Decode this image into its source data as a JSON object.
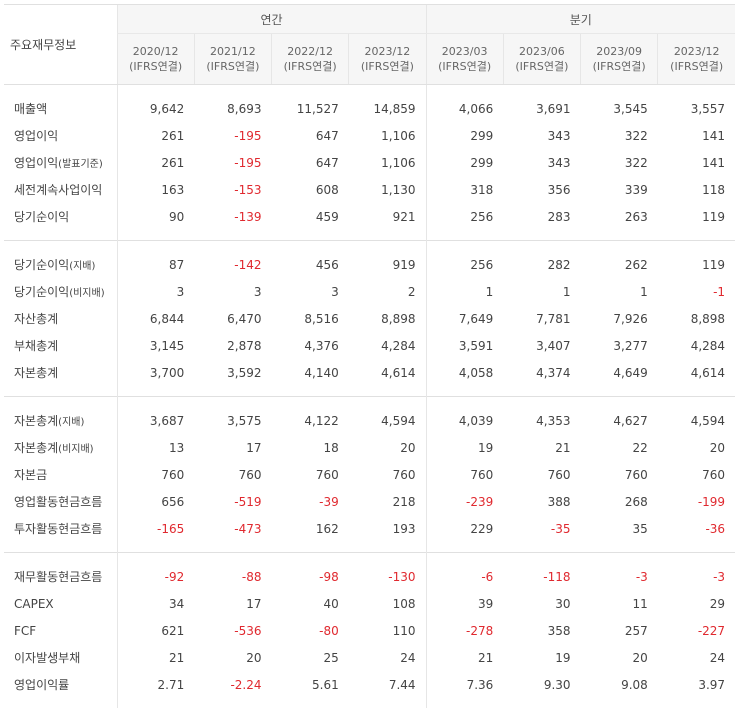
{
  "header": {
    "label": "주요재무정보",
    "annual": "연간",
    "quarterly": "분기",
    "periods": [
      {
        "date": "2020/12",
        "basis": "(IFRS연결)"
      },
      {
        "date": "2021/12",
        "basis": "(IFRS연결)"
      },
      {
        "date": "2022/12",
        "basis": "(IFRS연결)"
      },
      {
        "date": "2023/12",
        "basis": "(IFRS연결)"
      },
      {
        "date": "2023/03",
        "basis": "(IFRS연결)"
      },
      {
        "date": "2023/06",
        "basis": "(IFRS연결)"
      },
      {
        "date": "2023/09",
        "basis": "(IFRS연결)"
      },
      {
        "date": "2023/12",
        "basis": "(IFRS연결)"
      }
    ]
  },
  "groups": [
    [
      {
        "label": "매출액",
        "sub": "",
        "values": [
          "9,642",
          "8,693",
          "11,527",
          "14,859",
          "4,066",
          "3,691",
          "3,545",
          "3,557"
        ]
      },
      {
        "label": "영업이익",
        "sub": "",
        "values": [
          "261",
          "-195",
          "647",
          "1,106",
          "299",
          "343",
          "322",
          "141"
        ]
      },
      {
        "label": "영업이익",
        "sub": "(발표기준)",
        "values": [
          "261",
          "-195",
          "647",
          "1,106",
          "299",
          "343",
          "322",
          "141"
        ]
      },
      {
        "label": "세전계속사업이익",
        "sub": "",
        "values": [
          "163",
          "-153",
          "608",
          "1,130",
          "318",
          "356",
          "339",
          "118"
        ]
      },
      {
        "label": "당기순이익",
        "sub": "",
        "values": [
          "90",
          "-139",
          "459",
          "921",
          "256",
          "283",
          "263",
          "119"
        ]
      }
    ],
    [
      {
        "label": "당기순이익",
        "sub": "(지배)",
        "values": [
          "87",
          "-142",
          "456",
          "919",
          "256",
          "282",
          "262",
          "119"
        ]
      },
      {
        "label": "당기순이익",
        "sub": "(비지배)",
        "values": [
          "3",
          "3",
          "3",
          "2",
          "1",
          "1",
          "1",
          "-1"
        ]
      },
      {
        "label": "자산총계",
        "sub": "",
        "values": [
          "6,844",
          "6,470",
          "8,516",
          "8,898",
          "7,649",
          "7,781",
          "7,926",
          "8,898"
        ]
      },
      {
        "label": "부채총계",
        "sub": "",
        "values": [
          "3,145",
          "2,878",
          "4,376",
          "4,284",
          "3,591",
          "3,407",
          "3,277",
          "4,284"
        ]
      },
      {
        "label": "자본총계",
        "sub": "",
        "values": [
          "3,700",
          "3,592",
          "4,140",
          "4,614",
          "4,058",
          "4,374",
          "4,649",
          "4,614"
        ]
      }
    ],
    [
      {
        "label": "자본총계",
        "sub": "(지배)",
        "values": [
          "3,687",
          "3,575",
          "4,122",
          "4,594",
          "4,039",
          "4,353",
          "4,627",
          "4,594"
        ]
      },
      {
        "label": "자본총계",
        "sub": "(비지배)",
        "values": [
          "13",
          "17",
          "18",
          "20",
          "19",
          "21",
          "22",
          "20"
        ]
      },
      {
        "label": "자본금",
        "sub": "",
        "values": [
          "760",
          "760",
          "760",
          "760",
          "760",
          "760",
          "760",
          "760"
        ]
      },
      {
        "label": "영업활동현금흐름",
        "sub": "",
        "values": [
          "656",
          "-519",
          "-39",
          "218",
          "-239",
          "388",
          "268",
          "-199"
        ]
      },
      {
        "label": "투자활동현금흐름",
        "sub": "",
        "values": [
          "-165",
          "-473",
          "162",
          "193",
          "229",
          "-35",
          "35",
          "-36"
        ]
      }
    ],
    [
      {
        "label": "재무활동현금흐름",
        "sub": "",
        "values": [
          "-92",
          "-88",
          "-98",
          "-130",
          "-6",
          "-118",
          "-3",
          "-3"
        ]
      },
      {
        "label": "CAPEX",
        "sub": "",
        "values": [
          "34",
          "17",
          "40",
          "108",
          "39",
          "30",
          "11",
          "29"
        ]
      },
      {
        "label": "FCF",
        "sub": "",
        "values": [
          "621",
          "-536",
          "-80",
          "110",
          "-278",
          "358",
          "257",
          "-227"
        ]
      },
      {
        "label": "이자발생부채",
        "sub": "",
        "values": [
          "21",
          "20",
          "25",
          "24",
          "21",
          "19",
          "20",
          "24"
        ]
      },
      {
        "label": "영업이익률",
        "sub": "",
        "values": [
          "2.71",
          "-2.24",
          "5.61",
          "7.44",
          "7.36",
          "9.30",
          "9.08",
          "3.97"
        ]
      }
    ]
  ]
}
